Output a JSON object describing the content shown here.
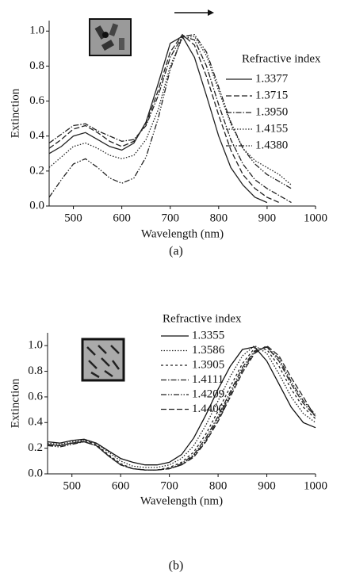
{
  "chart_data": [
    {
      "type": "line",
      "caption": "(a)",
      "x_label": "Wavelength (nm)",
      "y_label": "Extinction",
      "legend_title": "Refractive index",
      "xlim": [
        450,
        1000
      ],
      "xticks": [
        500,
        600,
        700,
        800,
        900,
        1000
      ],
      "ylim": [
        0,
        1.06
      ],
      "yticks": [
        {
          "value": 0,
          "label": "0.0"
        },
        0.2,
        0.4,
        0.6,
        0.8,
        {
          "value": 1,
          "label": "1.0"
        }
      ],
      "x": [
        450,
        475,
        500,
        525,
        550,
        575,
        600,
        625,
        650,
        675,
        700,
        725,
        750,
        775,
        800,
        825,
        850,
        875,
        900,
        925,
        950
      ],
      "series": [
        {
          "name": "1.3377",
          "color": "#222222",
          "linestyle": "solid",
          "values": [
            0.3,
            0.34,
            0.4,
            0.42,
            0.38,
            0.34,
            0.32,
            0.36,
            0.48,
            0.7,
            0.93,
            0.97,
            0.85,
            0.63,
            0.4,
            0.22,
            0.12,
            0.05,
            0.02,
            null,
            null
          ]
        },
        {
          "name": "1.3715",
          "color": "#222222",
          "linestyle": "dashed",
          "values": [
            0.33,
            0.38,
            0.44,
            0.46,
            0.42,
            0.37,
            0.34,
            0.37,
            0.47,
            0.66,
            0.88,
            0.98,
            0.92,
            0.74,
            0.52,
            0.32,
            0.18,
            0.1,
            0.05,
            0.02,
            null
          ]
        },
        {
          "name": "1.3950",
          "color": "#222222",
          "linestyle": "dashdot",
          "values": [
            0.36,
            0.41,
            0.46,
            0.47,
            0.43,
            0.4,
            0.37,
            0.38,
            0.46,
            0.63,
            0.85,
            0.97,
            0.95,
            0.8,
            0.58,
            0.38,
            0.24,
            0.15,
            0.1,
            0.06,
            0.02
          ]
        },
        {
          "name": "1.4155",
          "color": "#222222",
          "linestyle": "dotted",
          "values": [
            0.22,
            0.28,
            0.34,
            0.36,
            0.33,
            0.29,
            0.27,
            0.29,
            0.38,
            0.55,
            0.8,
            0.96,
            0.97,
            0.86,
            0.66,
            0.47,
            0.33,
            0.26,
            0.22,
            0.18,
            0.12
          ]
        },
        {
          "name": "1.4380",
          "color": "#222222",
          "linestyle": "dashdotdot",
          "values": [
            0.05,
            0.15,
            0.24,
            0.27,
            0.22,
            0.16,
            0.13,
            0.16,
            0.28,
            0.5,
            0.78,
            0.97,
            0.98,
            0.88,
            0.68,
            0.48,
            0.33,
            0.24,
            0.18,
            0.14,
            0.1
          ]
        }
      ]
    },
    {
      "type": "line",
      "caption": "(b)",
      "x_label": "Wavelength (nm)",
      "y_label": "Extinction",
      "legend_title": "Refractive index",
      "xlim": [
        450,
        1000
      ],
      "xticks": [
        500,
        600,
        700,
        800,
        900,
        1000
      ],
      "ylim": [
        0,
        1.1
      ],
      "yticks": [
        {
          "value": 0,
          "label": "0.0"
        },
        0.2,
        0.4,
        0.6,
        0.8,
        {
          "value": 1,
          "label": "1.0"
        }
      ],
      "x": [
        450,
        475,
        500,
        525,
        550,
        575,
        600,
        625,
        650,
        675,
        700,
        725,
        750,
        775,
        800,
        825,
        850,
        875,
        900,
        925,
        950,
        975,
        1000
      ],
      "series": [
        {
          "name": "1.3355",
          "color": "#111111",
          "linestyle": "solid",
          "values": [
            0.25,
            0.24,
            0.26,
            0.27,
            0.24,
            0.18,
            0.12,
            0.09,
            0.07,
            0.07,
            0.09,
            0.15,
            0.28,
            0.46,
            0.66,
            0.84,
            0.97,
            0.99,
            0.88,
            0.7,
            0.52,
            0.4,
            0.36
          ]
        },
        {
          "name": "1.3586",
          "color": "#222222",
          "linestyle": "dotted",
          "values": [
            0.24,
            0.23,
            0.25,
            0.26,
            0.24,
            0.17,
            0.1,
            0.06,
            0.05,
            0.05,
            0.07,
            0.12,
            0.22,
            0.38,
            0.57,
            0.76,
            0.92,
            1.0,
            0.94,
            0.78,
            0.6,
            0.47,
            0.4
          ]
        },
        {
          "name": "1.3905",
          "color": "#222222",
          "linestyle": "shortdash",
          "values": [
            0.23,
            0.22,
            0.24,
            0.26,
            0.23,
            0.15,
            0.08,
            0.04,
            0.03,
            0.03,
            0.05,
            0.09,
            0.17,
            0.31,
            0.49,
            0.68,
            0.86,
            0.98,
            0.97,
            0.84,
            0.66,
            0.52,
            0.43
          ]
        },
        {
          "name": "1.4111",
          "color": "#222222",
          "linestyle": "dashdot",
          "values": [
            0.22,
            0.22,
            0.24,
            0.25,
            0.22,
            0.14,
            0.07,
            0.04,
            0.03,
            0.03,
            0.04,
            0.08,
            0.15,
            0.28,
            0.45,
            0.64,
            0.83,
            0.96,
            0.99,
            0.88,
            0.7,
            0.55,
            0.45
          ]
        },
        {
          "name": "1.4209",
          "color": "#222222",
          "linestyle": "dashdotdot",
          "values": [
            0.22,
            0.21,
            0.23,
            0.25,
            0.22,
            0.14,
            0.07,
            0.04,
            0.03,
            0.03,
            0.04,
            0.07,
            0.14,
            0.26,
            0.43,
            0.62,
            0.81,
            0.95,
            0.99,
            0.9,
            0.72,
            0.57,
            0.46
          ]
        },
        {
          "name": "1.4400",
          "color": "#222222",
          "linestyle": "dashed",
          "values": [
            0.23,
            0.22,
            0.24,
            0.25,
            0.22,
            0.14,
            0.07,
            0.04,
            0.03,
            0.03,
            0.04,
            0.07,
            0.13,
            0.25,
            0.41,
            0.6,
            0.79,
            0.94,
            1.0,
            0.92,
            0.75,
            0.6,
            0.44
          ]
        }
      ]
    }
  ]
}
